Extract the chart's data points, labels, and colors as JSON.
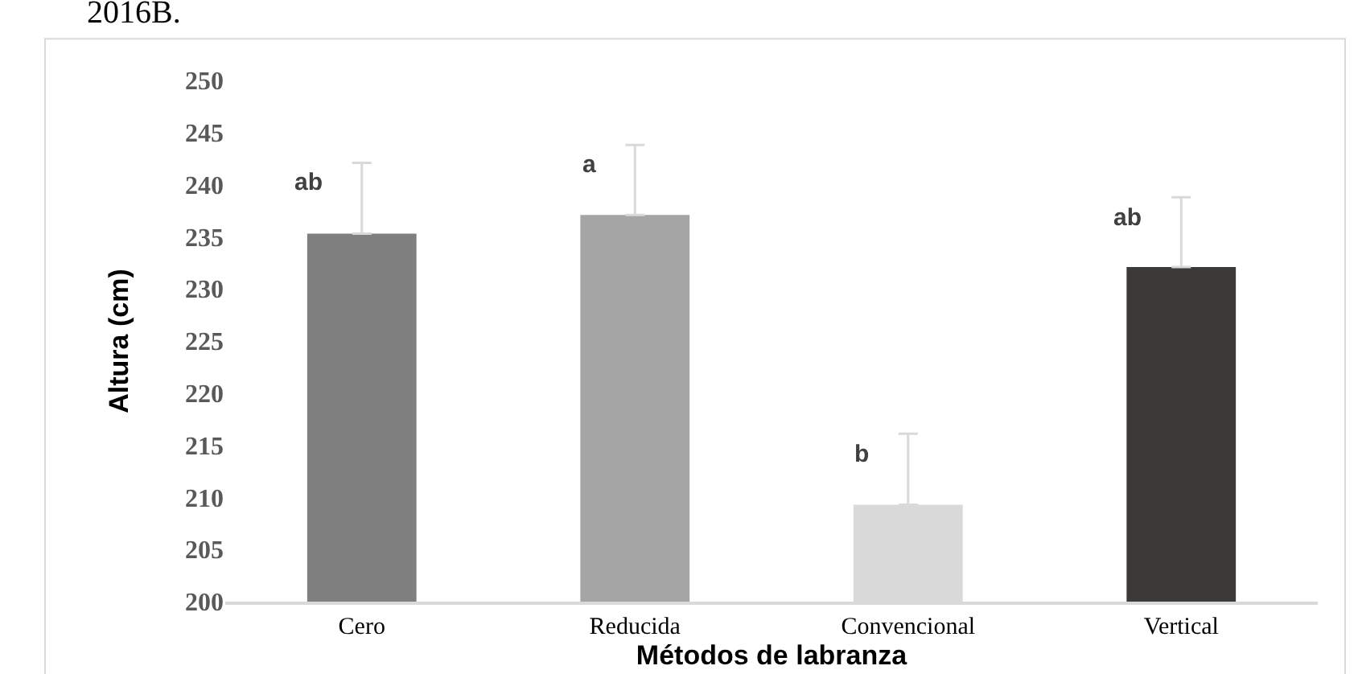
{
  "chart_data": {
    "type": "bar",
    "xlabel": "Métodos de labranza",
    "ylabel": "Altura (cm)",
    "categories": [
      "Cero",
      "Reducida",
      "Convencional",
      "Vertical"
    ],
    "values": [
      235.3,
      237.1,
      209.3,
      232.1
    ],
    "colors": [
      "#7f7f7f",
      "#a5a5a5",
      "#d9d9d9",
      "#3b3a38"
    ],
    "errors": [
      [
        235.3,
        242.1
      ],
      [
        237.1,
        243.8
      ],
      [
        209.3,
        216.1
      ],
      [
        232.1,
        238.8
      ]
    ],
    "ylim": [
      200,
      250
    ],
    "yticks": [
      200,
      205,
      210,
      215,
      220,
      225,
      230,
      235,
      240,
      245,
      250
    ],
    "grid": false,
    "legend": false,
    "annotations": [
      {
        "text": "ab",
        "x": "Cero",
        "y": 242.1
      },
      {
        "text": "a",
        "x": "Reducida",
        "y": 243.8
      },
      {
        "text": "b",
        "x": "Convencional",
        "y": 216.1
      },
      {
        "text": "ab",
        "x": "Vertical",
        "y": 238.8
      },
      "2016B."
    ]
  }
}
